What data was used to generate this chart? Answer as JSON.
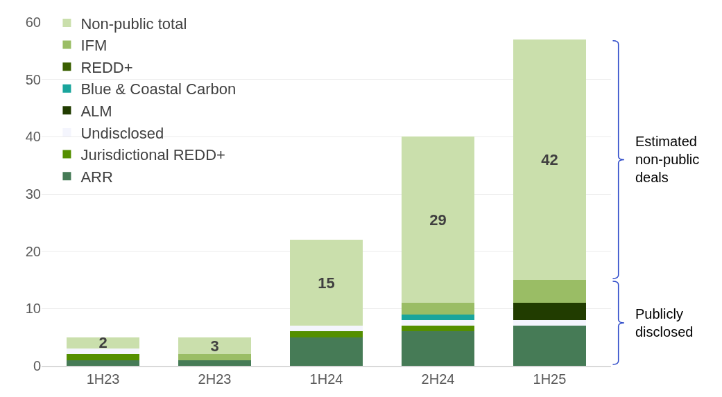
{
  "chart_data": {
    "type": "bar",
    "stacked": true,
    "categories": [
      "1H23",
      "2H23",
      "1H24",
      "2H24",
      "1H25"
    ],
    "series": [
      {
        "name": "ARR",
        "color": "#467b56",
        "values": [
          1,
          1,
          5,
          6,
          7
        ]
      },
      {
        "name": "Jurisdictional REDD+",
        "color": "#548f00",
        "values": [
          1,
          0,
          1,
          1,
          0
        ]
      },
      {
        "name": "Undisclosed",
        "color": "#f4f5fd",
        "values": [
          1,
          0,
          1,
          1,
          1
        ]
      },
      {
        "name": "ALM",
        "color": "#213c00",
        "values": [
          0,
          0,
          0,
          0,
          3
        ]
      },
      {
        "name": "Blue & Coastal Carbon",
        "color": "#1aa59c",
        "values": [
          0,
          0,
          0,
          1,
          0
        ]
      },
      {
        "name": "REDD+",
        "color": "#3a5f00",
        "values": [
          0,
          0,
          0,
          0,
          0
        ]
      },
      {
        "name": "IFM",
        "color": "#9abd65",
        "values": [
          0,
          1,
          0,
          2,
          4
        ]
      },
      {
        "name": "Non-public total",
        "color": "#cadfac",
        "values": [
          2,
          3,
          15,
          29,
          42
        ],
        "value_labels": [
          "2",
          "3",
          "15",
          "29",
          "42"
        ]
      }
    ],
    "ylim": [
      0,
      60
    ],
    "yticks": [
      0,
      10,
      20,
      30,
      40,
      50,
      60
    ],
    "grid": "y",
    "legend": "top left",
    "annotations": [
      "Estimated non-public deals",
      "Publicly disclosed"
    ]
  }
}
